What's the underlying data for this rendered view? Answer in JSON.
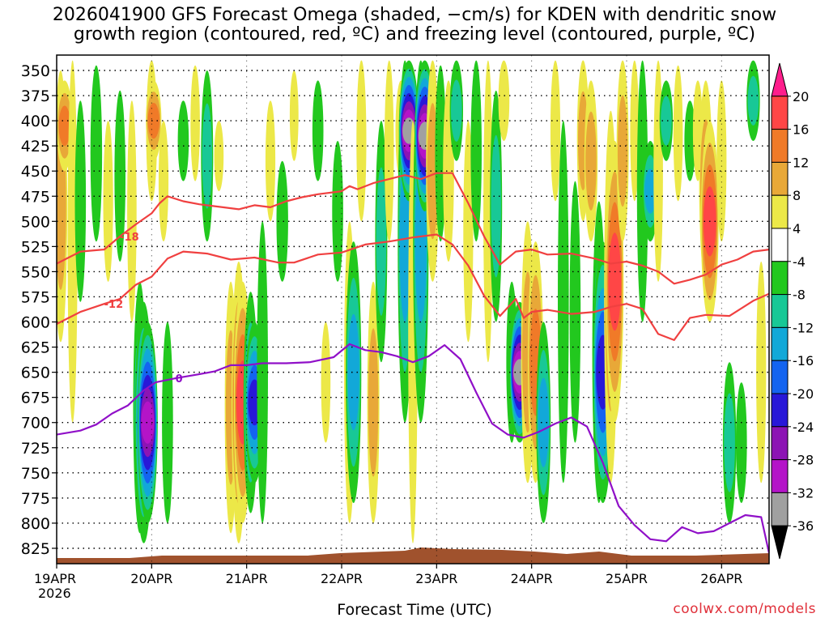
{
  "title_line1": "2026041900 GFS Forecast Omega (shaded, −cm/s) for KDEN with dendritic snow",
  "title_line2": "growth region (contoured, red, ºC) and freezing level (contoured, purple, ºC)",
  "xlabel": "Forecast Time (UTC)",
  "credit": "coolwx.com/models",
  "chart_data": {
    "type": "heatmap",
    "title": "2026041900 GFS Forecast Omega for KDEN",
    "xlabel": "Forecast Time (UTC)",
    "ylabel": "Pressure (hPa)",
    "x_ticks": [
      {
        "label": "19APR",
        "sub": "2026",
        "hour": 0
      },
      {
        "label": "20APR",
        "hour": 24
      },
      {
        "label": "21APR",
        "hour": 48
      },
      {
        "label": "22APR",
        "hour": 72
      },
      {
        "label": "23APR",
        "hour": 96
      },
      {
        "label": "24APR",
        "hour": 120
      },
      {
        "label": "25APR",
        "hour": 144
      },
      {
        "label": "26APR",
        "hour": 168
      }
    ],
    "xlim": [
      0,
      180
    ],
    "y_ticks": [
      350,
      375,
      400,
      425,
      450,
      475,
      500,
      525,
      550,
      575,
      600,
      625,
      650,
      675,
      700,
      725,
      750,
      775,
      800,
      825
    ],
    "ylim": [
      340,
      840
    ],
    "colorbar": {
      "labels": [
        "20",
        "16",
        "12",
        "8",
        "4",
        "-4",
        "-8",
        "-12",
        "-16",
        "-20",
        "-24",
        "-28",
        "-32",
        "-36"
      ],
      "levels": [
        20,
        16,
        12,
        8,
        4,
        -4,
        -8,
        -12,
        -16,
        -20,
        -24,
        -28,
        -32,
        -36
      ],
      "colors": [
        "#ff1e8c",
        "#ff4646",
        "#f07a28",
        "#e8a838",
        "#ece848",
        "#ffffff",
        "#22c81e",
        "#18c896",
        "#12a8d8",
        "#1464f0",
        "#2818d8",
        "#8c14b4",
        "#b414c8",
        "#a0a0a0",
        "#000000"
      ]
    },
    "omega_blobs": [
      {
        "hour": 1,
        "p1": 350,
        "p2": 620,
        "value": 12
      },
      {
        "hour": 2,
        "p1": 360,
        "p2": 450,
        "value": 16
      },
      {
        "hour": 4,
        "p1": 340,
        "p2": 700,
        "value": 6
      },
      {
        "hour": 6,
        "p1": 380,
        "p2": 580,
        "value": -8
      },
      {
        "hour": 10,
        "p1": 345,
        "p2": 520,
        "value": -9
      },
      {
        "hour": 13,
        "p1": 400,
        "p2": 560,
        "value": 6
      },
      {
        "hour": 16,
        "p1": 370,
        "p2": 540,
        "value": -8
      },
      {
        "hour": 19,
        "p1": 380,
        "p2": 600,
        "value": 5
      },
      {
        "hour": 21,
        "p1": 560,
        "p2": 810,
        "value": -12
      },
      {
        "hour": 22,
        "p1": 580,
        "p2": 820,
        "value": -20
      },
      {
        "hour": 23,
        "p1": 600,
        "p2": 800,
        "value": -32
      },
      {
        "hour": 24,
        "p1": 340,
        "p2": 480,
        "value": 8
      },
      {
        "hour": 24.5,
        "p1": 360,
        "p2": 440,
        "value": 16
      },
      {
        "hour": 27,
        "p1": 400,
        "p2": 520,
        "value": 6
      },
      {
        "hour": 28,
        "p1": 600,
        "p2": 800,
        "value": -8
      },
      {
        "hour": 32,
        "p1": 380,
        "p2": 460,
        "value": -8
      },
      {
        "hour": 35,
        "p1": 345,
        "p2": 460,
        "value": 5
      },
      {
        "hour": 38,
        "p1": 350,
        "p2": 520,
        "value": -10
      },
      {
        "hour": 41,
        "p1": 400,
        "p2": 470,
        "value": 5
      },
      {
        "hour": 44,
        "p1": 560,
        "p2": 810,
        "value": 10
      },
      {
        "hour": 46,
        "p1": 540,
        "p2": 820,
        "value": 14
      },
      {
        "hour": 47,
        "p1": 560,
        "p2": 800,
        "value": 20
      },
      {
        "hour": 49,
        "p1": 570,
        "p2": 790,
        "value": -14
      },
      {
        "hour": 50,
        "p1": 600,
        "p2": 760,
        "value": -22
      },
      {
        "hour": 52,
        "p1": 500,
        "p2": 800,
        "value": -8
      },
      {
        "hour": 54,
        "p1": 380,
        "p2": 500,
        "value": 6
      },
      {
        "hour": 57,
        "p1": 440,
        "p2": 560,
        "value": -9
      },
      {
        "hour": 60,
        "p1": 350,
        "p2": 440,
        "value": 4
      },
      {
        "hour": 66,
        "p1": 360,
        "p2": 460,
        "value": -8
      },
      {
        "hour": 68,
        "p1": 600,
        "p2": 720,
        "value": 5
      },
      {
        "hour": 71,
        "p1": 420,
        "p2": 560,
        "value": -8
      },
      {
        "hour": 74,
        "p1": 500,
        "p2": 800,
        "value": 8
      },
      {
        "hour": 75,
        "p1": 520,
        "p2": 780,
        "value": -16
      },
      {
        "hour": 77,
        "p1": 340,
        "p2": 500,
        "value": 6
      },
      {
        "hour": 80,
        "p1": 560,
        "p2": 800,
        "value": 10
      },
      {
        "hour": 82,
        "p1": 400,
        "p2": 640,
        "value": -10
      },
      {
        "hour": 84,
        "p1": 340,
        "p2": 520,
        "value": 5
      },
      {
        "hour": 87,
        "p1": 360,
        "p2": 460,
        "value": 8
      },
      {
        "hour": 88,
        "p1": 340,
        "p2": 700,
        "value": -14
      },
      {
        "hour": 89,
        "p1": 340,
        "p2": 480,
        "value": -36
      },
      {
        "hour": 90,
        "p1": 400,
        "p2": 820,
        "value": 5
      },
      {
        "hour": 92,
        "p1": 340,
        "p2": 700,
        "value": -16
      },
      {
        "hour": 93,
        "p1": 340,
        "p2": 490,
        "value": -36
      },
      {
        "hour": 95,
        "p1": 340,
        "p2": 560,
        "value": 12
      },
      {
        "hour": 97,
        "p1": 345,
        "p2": 520,
        "value": -8
      },
      {
        "hour": 99,
        "p1": 360,
        "p2": 540,
        "value": 8
      },
      {
        "hour": 101,
        "p1": 340,
        "p2": 440,
        "value": -12
      },
      {
        "hour": 104,
        "p1": 400,
        "p2": 620,
        "value": 6
      },
      {
        "hour": 106,
        "p1": 340,
        "p2": 520,
        "value": -8
      },
      {
        "hour": 109,
        "p1": 340,
        "p2": 640,
        "value": 5
      },
      {
        "hour": 111,
        "p1": 370,
        "p2": 600,
        "value": -10
      },
      {
        "hour": 113,
        "p1": 340,
        "p2": 420,
        "value": 8
      },
      {
        "hour": 115,
        "p1": 560,
        "p2": 720,
        "value": -8
      },
      {
        "hour": 117,
        "p1": 580,
        "p2": 720,
        "value": -36
      },
      {
        "hour": 119,
        "p1": 500,
        "p2": 760,
        "value": 12
      },
      {
        "hour": 121,
        "p1": 520,
        "p2": 760,
        "value": 16
      },
      {
        "hour": 123,
        "p1": 600,
        "p2": 800,
        "value": -14
      },
      {
        "hour": 126,
        "p1": 340,
        "p2": 480,
        "value": 6
      },
      {
        "hour": 128,
        "p1": 400,
        "p2": 760,
        "value": -8
      },
      {
        "hour": 131,
        "p1": 460,
        "p2": 720,
        "value": -8
      },
      {
        "hour": 133,
        "p1": 340,
        "p2": 500,
        "value": 10
      },
      {
        "hour": 135,
        "p1": 360,
        "p2": 520,
        "value": 12
      },
      {
        "hour": 137,
        "p1": 480,
        "p2": 780,
        "value": -12
      },
      {
        "hour": 138,
        "p1": 520,
        "p2": 780,
        "value": -24
      },
      {
        "hour": 140,
        "p1": 390,
        "p2": 760,
        "value": 12
      },
      {
        "hour": 141,
        "p1": 420,
        "p2": 700,
        "value": 20
      },
      {
        "hour": 143,
        "p1": 340,
        "p2": 520,
        "value": 10
      },
      {
        "hour": 146,
        "p1": 340,
        "p2": 480,
        "value": 4
      },
      {
        "hour": 148,
        "p1": 340,
        "p2": 600,
        "value": -8
      },
      {
        "hour": 150,
        "p1": 420,
        "p2": 520,
        "value": -16
      },
      {
        "hour": 152,
        "p1": 340,
        "p2": 560,
        "value": 5
      },
      {
        "hour": 154,
        "p1": 360,
        "p2": 440,
        "value": -12
      },
      {
        "hour": 157,
        "p1": 345,
        "p2": 480,
        "value": 5
      },
      {
        "hour": 160,
        "p1": 380,
        "p2": 460,
        "value": -8
      },
      {
        "hour": 162,
        "p1": 360,
        "p2": 460,
        "value": 6
      },
      {
        "hour": 164,
        "p1": 360,
        "p2": 560,
        "value": 12
      },
      {
        "hour": 165,
        "p1": 400,
        "p2": 600,
        "value": 20
      },
      {
        "hour": 168,
        "p1": 360,
        "p2": 520,
        "value": 6
      },
      {
        "hour": 170,
        "p1": 640,
        "p2": 800,
        "value": -12
      },
      {
        "hour": 173,
        "p1": 660,
        "p2": 780,
        "value": -8
      },
      {
        "hour": 176,
        "p1": 340,
        "p2": 420,
        "value": -12
      },
      {
        "hour": 178,
        "p1": 540,
        "p2": 760,
        "value": 6
      }
    ],
    "contours": [
      {
        "label": "-18",
        "color": "#f04040",
        "kind": "dendritic",
        "label_hour": 18,
        "points": [
          [
            0,
            542
          ],
          [
            6,
            530
          ],
          [
            12,
            528
          ],
          [
            16,
            515
          ],
          [
            20,
            503
          ],
          [
            24,
            492
          ],
          [
            26,
            482
          ],
          [
            28,
            475
          ],
          [
            32,
            480
          ],
          [
            36,
            483
          ],
          [
            42,
            486
          ],
          [
            46,
            488
          ],
          [
            50,
            484
          ],
          [
            54,
            486
          ],
          [
            58,
            480
          ],
          [
            62,
            476
          ],
          [
            66,
            473
          ],
          [
            72,
            470
          ],
          [
            74,
            465
          ],
          [
            76,
            468
          ],
          [
            80,
            462
          ],
          [
            84,
            458
          ],
          [
            88,
            454
          ],
          [
            92,
            458
          ],
          [
            96,
            452
          ],
          [
            100,
            452
          ],
          [
            104,
            482
          ],
          [
            108,
            515
          ],
          [
            112,
            543
          ],
          [
            116,
            530
          ],
          [
            120,
            528
          ],
          [
            124,
            533
          ],
          [
            130,
            532
          ],
          [
            136,
            537
          ],
          [
            140,
            542
          ],
          [
            144,
            540
          ],
          [
            148,
            544
          ],
          [
            152,
            550
          ],
          [
            156,
            562
          ],
          [
            160,
            558
          ],
          [
            164,
            553
          ],
          [
            168,
            543
          ],
          [
            172,
            538
          ],
          [
            176,
            530
          ],
          [
            180,
            528
          ]
        ]
      },
      {
        "label": "-12",
        "color": "#f04040",
        "kind": "dendritic",
        "label_hour": 10,
        "points": [
          [
            0,
            602
          ],
          [
            6,
            590
          ],
          [
            12,
            582
          ],
          [
            16,
            577
          ],
          [
            20,
            563
          ],
          [
            24,
            555
          ],
          [
            28,
            537
          ],
          [
            32,
            530
          ],
          [
            38,
            532
          ],
          [
            44,
            538
          ],
          [
            50,
            536
          ],
          [
            56,
            541
          ],
          [
            60,
            541
          ],
          [
            66,
            533
          ],
          [
            72,
            531
          ],
          [
            78,
            523
          ],
          [
            84,
            520
          ],
          [
            90,
            516
          ],
          [
            96,
            513
          ],
          [
            100,
            523
          ],
          [
            104,
            544
          ],
          [
            108,
            574
          ],
          [
            112,
            594
          ],
          [
            116,
            577
          ],
          [
            118,
            596
          ],
          [
            120,
            590
          ],
          [
            124,
            588
          ],
          [
            130,
            592
          ],
          [
            136,
            590
          ],
          [
            140,
            585
          ],
          [
            144,
            582
          ],
          [
            148,
            587
          ],
          [
            152,
            612
          ],
          [
            156,
            618
          ],
          [
            160,
            596
          ],
          [
            164,
            593
          ],
          [
            170,
            594
          ],
          [
            176,
            579
          ],
          [
            180,
            572
          ]
        ]
      },
      {
        "label": "0",
        "color": "#9010c8",
        "kind": "freezing",
        "label_hour": 29,
        "points": [
          [
            0,
            712
          ],
          [
            6,
            708
          ],
          [
            10,
            702
          ],
          [
            14,
            691
          ],
          [
            18,
            683
          ],
          [
            22,
            668
          ],
          [
            25,
            660
          ],
          [
            30,
            656
          ],
          [
            36,
            652
          ],
          [
            40,
            649
          ],
          [
            44,
            643
          ],
          [
            48,
            643
          ],
          [
            52,
            641
          ],
          [
            58,
            641
          ],
          [
            64,
            640
          ],
          [
            70,
            635
          ],
          [
            74,
            622
          ],
          [
            78,
            628
          ],
          [
            82,
            630
          ],
          [
            86,
            634
          ],
          [
            90,
            640
          ],
          [
            94,
            634
          ],
          [
            98,
            623
          ],
          [
            102,
            637
          ],
          [
            106,
            670
          ],
          [
            110,
            701
          ],
          [
            114,
            712
          ],
          [
            118,
            715
          ],
          [
            122,
            709
          ],
          [
            126,
            701
          ],
          [
            130,
            695
          ],
          [
            134,
            704
          ],
          [
            138,
            740
          ],
          [
            142,
            783
          ],
          [
            146,
            802
          ],
          [
            150,
            816
          ],
          [
            154,
            818
          ],
          [
            158,
            804
          ],
          [
            162,
            810
          ],
          [
            166,
            808
          ],
          [
            170,
            800
          ],
          [
            174,
            792
          ],
          [
            178,
            794
          ],
          [
            180,
            830
          ]
        ]
      }
    ]
  }
}
